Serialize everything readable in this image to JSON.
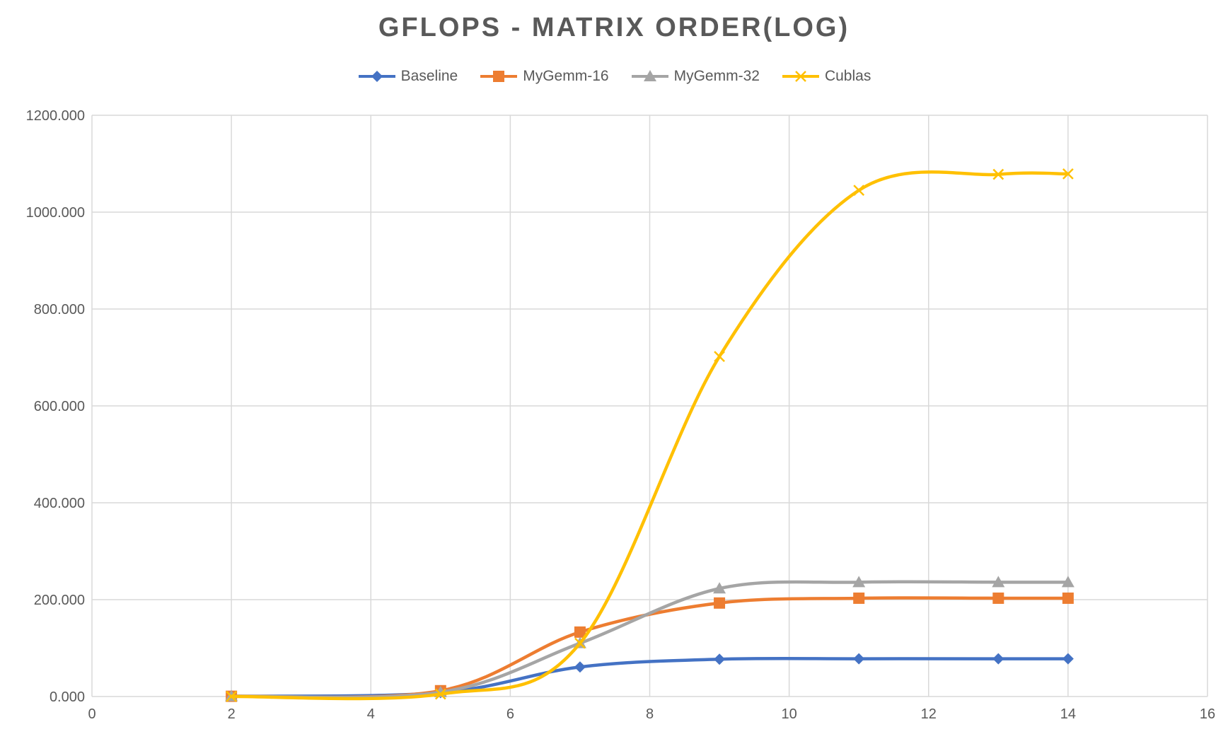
{
  "chart_data": {
    "type": "line",
    "title": "GFLOPS - MATRIX ORDER(LOG)",
    "xlabel": "",
    "ylabel": "",
    "xlim": [
      0,
      16
    ],
    "ylim": [
      0,
      1200
    ],
    "xticks": [
      "0",
      "2",
      "4",
      "6",
      "8",
      "10",
      "12",
      "14",
      "16"
    ],
    "yticks": [
      "0.000",
      "200.000",
      "400.000",
      "600.000",
      "800.000",
      "1000.000",
      "1200.000"
    ],
    "grid": true,
    "smooth": true,
    "legend_position": "top",
    "x": [
      2,
      5,
      7,
      9,
      11,
      13,
      14
    ],
    "series": [
      {
        "name": "Baseline",
        "color": "#4472C4",
        "marker": "diamond",
        "values": [
          0.5,
          8,
          61,
          77,
          78,
          78,
          78
        ]
      },
      {
        "name": "MyGemm-16",
        "color": "#ED7D31",
        "marker": "square",
        "values": [
          0.5,
          12,
          133,
          193,
          203,
          203,
          203
        ]
      },
      {
        "name": "MyGemm-32",
        "color": "#A5A5A5",
        "marker": "triangle",
        "values": [
          0.5,
          9,
          110,
          223,
          236,
          236,
          236
        ]
      },
      {
        "name": "Cublas",
        "color": "#FFC000",
        "marker": "x",
        "values": [
          0.2,
          5,
          110,
          702,
          1045,
          1078,
          1079
        ]
      }
    ]
  }
}
